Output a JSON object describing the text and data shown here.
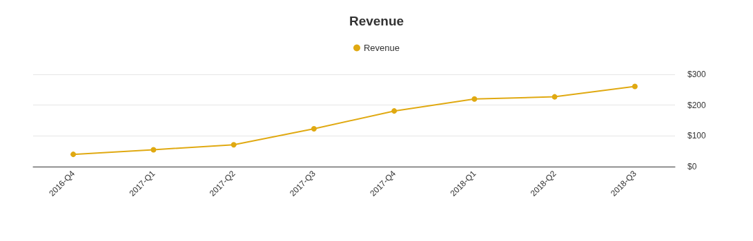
{
  "chart_data": {
    "type": "line",
    "title": "Revenue",
    "categories": [
      "2016-Q4",
      "2017-Q1",
      "2017-Q2",
      "2017-Q3",
      "2017-Q4",
      "2018-Q1",
      "2018-Q2",
      "2018-Q3"
    ],
    "series": [
      {
        "name": "Revenue",
        "color": "#e0a911",
        "values": [
          40,
          55,
          71,
          123,
          181,
          220,
          227,
          261
        ]
      }
    ],
    "ylim": [
      0,
      300
    ],
    "yticks": [
      {
        "value": 0,
        "label": "$0"
      },
      {
        "value": 100,
        "label": "$100"
      },
      {
        "value": 200,
        "label": "$200"
      },
      {
        "value": 300,
        "label": "$300"
      }
    ],
    "grid": "y",
    "legend": "top",
    "marker": "circle",
    "line_style": "solid"
  }
}
